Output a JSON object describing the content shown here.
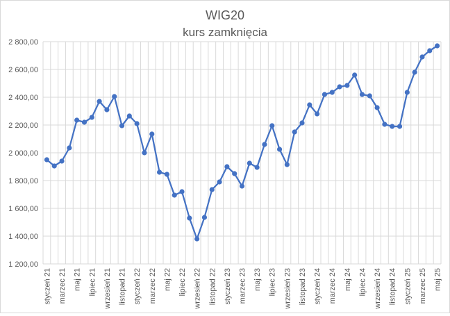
{
  "chart_data": {
    "type": "line",
    "title": "WIG20",
    "subtitle": "kurs zamknięcia",
    "xlabel": "",
    "ylabel": "",
    "ylim": [
      1200,
      2800
    ],
    "yticks": [
      "1 200,00",
      "1 400,00",
      "1 600,00",
      "1 800,00",
      "2 000,00",
      "2 200,00",
      "2 400,00",
      "2 600,00",
      "2 800,00"
    ],
    "ytick_values": [
      1200,
      1400,
      1600,
      1800,
      2000,
      2200,
      2400,
      2600,
      2800
    ],
    "grid": true,
    "legend": "none",
    "colors": {
      "line": "#4472c4",
      "grid": "#d9d9d9",
      "text": "#595959"
    },
    "x_tick_labels": [
      {
        "index": 0,
        "label": "styczeń 21"
      },
      {
        "index": 2,
        "label": "marzec 21"
      },
      {
        "index": 4,
        "label": "maj 21"
      },
      {
        "index": 6,
        "label": "lipiec 21"
      },
      {
        "index": 8,
        "label": "wrzesień 21"
      },
      {
        "index": 10,
        "label": "listopad 21"
      },
      {
        "index": 12,
        "label": "styczeń 22"
      },
      {
        "index": 14,
        "label": "marzec 22"
      },
      {
        "index": 16,
        "label": "maj 22"
      },
      {
        "index": 18,
        "label": "lipiec 22"
      },
      {
        "index": 20,
        "label": "wrzesień 22"
      },
      {
        "index": 22,
        "label": "listopad 22"
      },
      {
        "index": 24,
        "label": "styczeń 23"
      },
      {
        "index": 26,
        "label": "marzec 23"
      },
      {
        "index": 28,
        "label": "maj 23"
      },
      {
        "index": 30,
        "label": "lipiec 23"
      },
      {
        "index": 32,
        "label": "wrzesień 23"
      },
      {
        "index": 34,
        "label": "listopad 23"
      },
      {
        "index": 36,
        "label": "styczeń 24"
      },
      {
        "index": 38,
        "label": "marzec 24"
      },
      {
        "index": 40,
        "label": "maj 24"
      },
      {
        "index": 42,
        "label": "lipiec 24"
      },
      {
        "index": 44,
        "label": "wrzesień 24"
      },
      {
        "index": 46,
        "label": "listopad 24"
      },
      {
        "index": 48,
        "label": "styczeń 25"
      },
      {
        "index": 50,
        "label": "marzec 25"
      },
      {
        "index": 52,
        "label": "maj 25"
      }
    ],
    "series": [
      {
        "values": [
          1950,
          1905,
          1940,
          2035,
          2235,
          2220,
          2255,
          2370,
          2310,
          2405,
          2195,
          2265,
          2210,
          2000,
          2135,
          1860,
          1845,
          1695,
          1720,
          1530,
          1380,
          1535,
          1735,
          1790,
          1900,
          1850,
          1760,
          1925,
          1895,
          2060,
          2195,
          2025,
          1915,
          2150,
          2215,
          2345,
          2280,
          2420,
          2435,
          2475,
          2485,
          2560,
          2420,
          2410,
          2325,
          2205,
          2190,
          2190,
          2435,
          2580,
          2690,
          2735,
          2770
        ]
      }
    ]
  }
}
